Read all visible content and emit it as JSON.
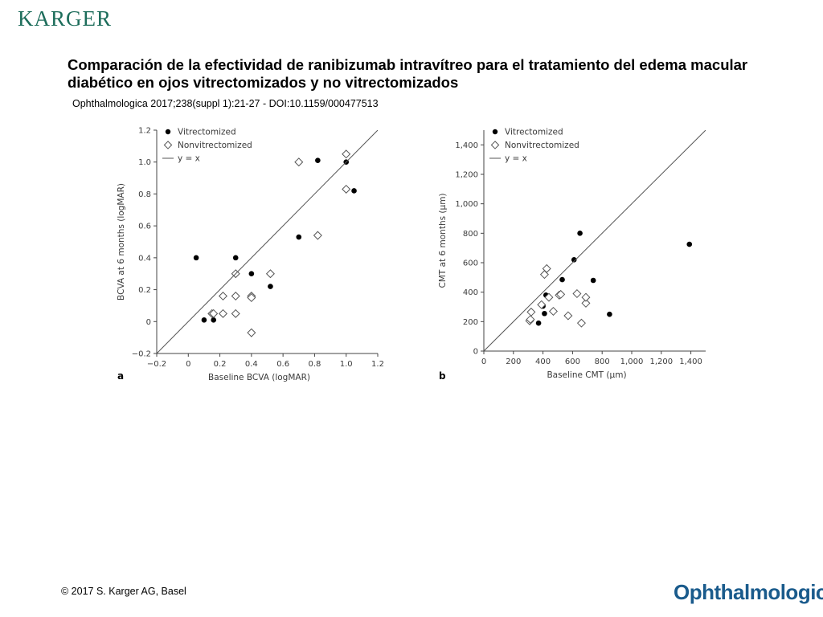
{
  "header": {
    "publisher_logo": "KARGER",
    "title": "Comparación de la efectividad de ranibizumab intravítreo para el tratamiento del edema macular diabético en ojos vitrectomizados y no vitrectomizados",
    "citation": "Ophthalmologica 2017;238(suppl 1):21-27 -  DOI:10.1159/000477513"
  },
  "footer": {
    "copyright": "© 2017 S. Karger AG, Basel",
    "journal_logo": "Ophthalmologica"
  },
  "colors": {
    "publisher_logo": "#1d6d5b",
    "journal_logo": "#1a5b8c",
    "axis": "#444444",
    "identity_line": "#555555",
    "marker_filled": "#000000",
    "marker_open": "#555555"
  },
  "chart_data": [
    {
      "panel": "a",
      "type": "scatter",
      "xlabel": "Baseline BCVA (logMAR)",
      "ylabel": "BCVA at 6 months (logMAR)",
      "xlim": [
        -0.2,
        1.2
      ],
      "ylim": [
        -0.2,
        1.2
      ],
      "xticks": [
        -0.2,
        0,
        0.2,
        0.4,
        0.6,
        0.8,
        1.0,
        1.2
      ],
      "yticks": [
        -0.2,
        0,
        0.2,
        0.4,
        0.6,
        0.8,
        1.0,
        1.2
      ],
      "xtick_labels": [
        "−0.2",
        "0",
        "0.2",
        "0.4",
        "0.6",
        "0.8",
        "1.0",
        "1.2"
      ],
      "ytick_labels": [
        "−0.2",
        "0",
        "0.2",
        "0.4",
        "0.6",
        "0.8",
        "1.0",
        "1.2"
      ],
      "legend": [
        "Vitrectomized",
        "Nonvitrectomized",
        "y = x"
      ],
      "legend_position": "top-left",
      "grid": false,
      "series": [
        {
          "name": "Vitrectomized",
          "marker": "filled-circle",
          "points": [
            [
              0.05,
              0.4
            ],
            [
              0.1,
              0.01
            ],
            [
              0.16,
              0.01
            ],
            [
              0.3,
              0.4
            ],
            [
              0.4,
              0.3
            ],
            [
              0.52,
              0.22
            ],
            [
              0.7,
              0.53
            ],
            [
              0.82,
              1.01
            ],
            [
              1.0,
              1.0
            ],
            [
              1.05,
              0.82
            ]
          ]
        },
        {
          "name": "Nonvitrectomized",
          "marker": "open-diamond",
          "points": [
            [
              0.15,
              0.05
            ],
            [
              0.16,
              0.05
            ],
            [
              0.22,
              0.16
            ],
            [
              0.22,
              0.05
            ],
            [
              0.3,
              0.16
            ],
            [
              0.3,
              0.3
            ],
            [
              0.3,
              0.05
            ],
            [
              0.4,
              0.16
            ],
            [
              0.4,
              0.15
            ],
            [
              0.4,
              -0.07
            ],
            [
              0.52,
              0.3
            ],
            [
              0.7,
              1.0
            ],
            [
              0.82,
              0.54
            ],
            [
              1.0,
              1.05
            ],
            [
              1.0,
              0.83
            ]
          ]
        },
        {
          "name": "y = x",
          "marker": "line",
          "points": [
            [
              -0.2,
              -0.2
            ],
            [
              1.2,
              1.2
            ]
          ]
        }
      ]
    },
    {
      "panel": "b",
      "type": "scatter",
      "xlabel": "Baseline CMT (μm)",
      "ylabel": "CMT at 6 months (μm)",
      "xlim": [
        0,
        1500
      ],
      "ylim": [
        0,
        1500
      ],
      "xticks": [
        0,
        200,
        400,
        600,
        800,
        1000,
        1200,
        1400
      ],
      "yticks": [
        0,
        200,
        400,
        600,
        800,
        1000,
        1200,
        1400
      ],
      "xtick_labels": [
        "0",
        "200",
        "400",
        "600",
        "800",
        "1,000",
        "1,200",
        "1,400"
      ],
      "ytick_labels": [
        "0",
        "200",
        "400",
        "600",
        "800",
        "1,000",
        "1,200",
        "1,400"
      ],
      "legend": [
        "Vitrectomized",
        "Nonvitrectomized",
        "y = x"
      ],
      "legend_position": "top-left",
      "grid": false,
      "series": [
        {
          "name": "Vitrectomized",
          "marker": "filled-circle",
          "points": [
            [
              370,
              190
            ],
            [
              400,
              305
            ],
            [
              410,
              255
            ],
            [
              420,
              380
            ],
            [
              530,
              485
            ],
            [
              610,
              620
            ],
            [
              650,
              800
            ],
            [
              740,
              480
            ],
            [
              850,
              250
            ],
            [
              1390,
              725
            ]
          ]
        },
        {
          "name": "Nonvitrectomized",
          "marker": "open-diamond",
          "points": [
            [
              310,
              205
            ],
            [
              315,
              215
            ],
            [
              320,
              265
            ],
            [
              390,
              315
            ],
            [
              410,
              520
            ],
            [
              425,
              560
            ],
            [
              440,
              365
            ],
            [
              470,
              270
            ],
            [
              510,
              380
            ],
            [
              520,
              385
            ],
            [
              570,
              240
            ],
            [
              630,
              390
            ],
            [
              660,
              190
            ],
            [
              690,
              325
            ],
            [
              690,
              365
            ]
          ]
        },
        {
          "name": "y = x",
          "marker": "line",
          "points": [
            [
              0,
              0
            ],
            [
              1500,
              1500
            ]
          ]
        }
      ]
    }
  ]
}
